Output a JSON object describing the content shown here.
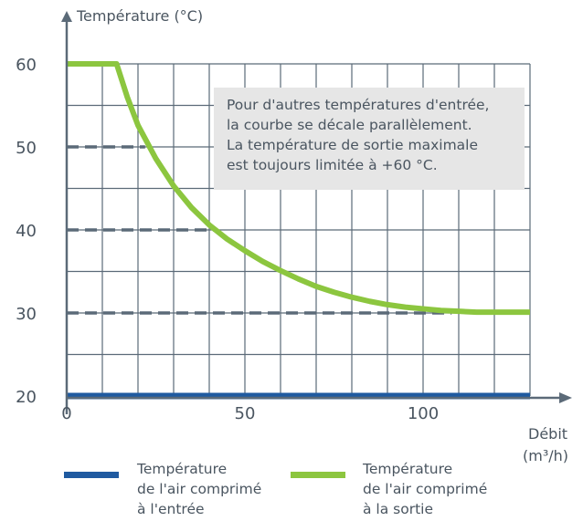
{
  "chart_data": {
    "type": "line",
    "ylabel": "Température (°C)",
    "xlabel_line1": "Débit",
    "xlabel_line2": "(m³/h)",
    "xlim": [
      0,
      130
    ],
    "ylim": [
      19,
      62
    ],
    "x_ticks": [
      0,
      50,
      100
    ],
    "x_tick_labels": [
      "0",
      "50",
      "100"
    ],
    "y_ticks": [
      20,
      30,
      40,
      50,
      60
    ],
    "y_tick_labels": [
      "20",
      "30",
      "40",
      "50",
      "60"
    ],
    "grid": true,
    "series": [
      {
        "name": "Température de l'air comprimé à l'entrée",
        "color": "#1f5aa0",
        "x": [
          0,
          130
        ],
        "y": [
          20,
          20
        ]
      },
      {
        "name": "Température de l'air comprimé à la sortie",
        "color": "#8cc63f",
        "x": [
          0,
          14,
          17,
          20,
          25,
          30,
          35,
          40,
          45,
          50,
          55,
          60,
          65,
          70,
          75,
          80,
          85,
          90,
          95,
          100,
          105,
          110,
          115,
          120,
          125,
          130
        ],
        "y": [
          60,
          60,
          56,
          52.6,
          48.6,
          45.3,
          42.7,
          40.6,
          38.9,
          37.5,
          36.2,
          35.1,
          34.1,
          33.2,
          32.5,
          31.9,
          31.4,
          31.0,
          30.7,
          30.5,
          30.3,
          30.2,
          30.1,
          30.1,
          30.1,
          30.1
        ]
      }
    ],
    "reference_lines": [
      {
        "y": 50,
        "x_end": 22
      },
      {
        "y": 40,
        "x_end": 42
      },
      {
        "y": 30,
        "x_end": 108
      }
    ],
    "annotation": [
      "Pour d'autres températures d'entrée,",
      "la courbe se décale parallèlement.",
      "La température de sortie maximale",
      "est toujours limitée à +60 °C."
    ]
  },
  "legend": {
    "inlet": {
      "line1": "Température",
      "line2": "de l'air comprimé",
      "line3": "à l'entrée",
      "color": "#1f5aa0"
    },
    "outlet": {
      "line1": "Température",
      "line2": "de l'air comprimé",
      "line3": "à la sortie",
      "color": "#8cc63f"
    }
  },
  "colors": {
    "grid": "#5b6a78",
    "axis": "#5b6a78",
    "dashed": "#5b6a78",
    "annotation_bg": "#e6e6e6"
  }
}
